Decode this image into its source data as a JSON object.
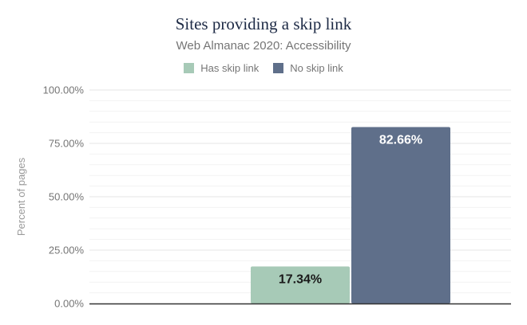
{
  "chart_data": {
    "type": "bar",
    "title": "Sites providing a skip link",
    "subtitle": "Web Almanac 2020: Accessibility",
    "ylabel": "Percent of pages",
    "xlabel": "",
    "ylim": [
      0,
      100
    ],
    "yticks": [
      0,
      25,
      50,
      75,
      100
    ],
    "ytick_labels": [
      "0.00%",
      "25.00%",
      "50.00%",
      "75.00%",
      "100.00%"
    ],
    "minor_gridlines": true,
    "legend_position": "top-center",
    "series": [
      {
        "name": "Has skip link",
        "value": 17.34,
        "label": "17.34%",
        "color": "#a7cab7",
        "label_color": "#1a1a1a"
      },
      {
        "name": "No skip link",
        "value": 82.66,
        "label": "82.66%",
        "color": "#5f6f8a",
        "label_color": "#ffffff"
      }
    ]
  }
}
